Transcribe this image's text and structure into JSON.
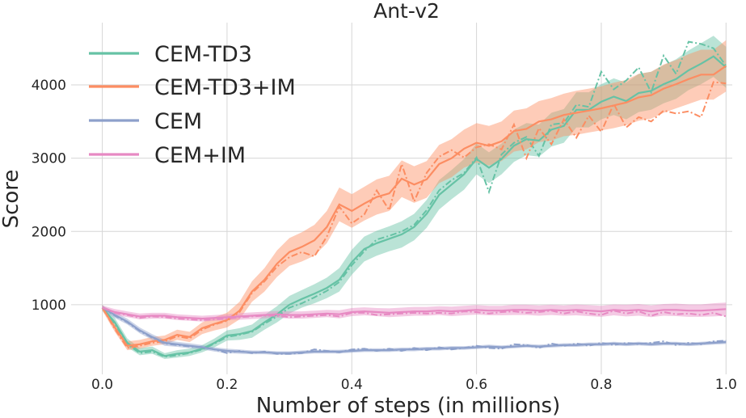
{
  "chart_data": {
    "type": "line",
    "title": "Ant-v2",
    "xlabel": "Number of steps (in millions)",
    "ylabel": "Score",
    "xlim": [
      -0.05,
      1.01
    ],
    "ylim": [
      50,
      4850
    ],
    "xticks": [
      0.0,
      0.2,
      0.4,
      0.6,
      0.8,
      1.0
    ],
    "xtick_labels": [
      "0.0",
      "0.2",
      "0.4",
      "0.6",
      "0.8",
      "1.0"
    ],
    "yticks": [
      1000,
      2000,
      3000,
      4000
    ],
    "ytick_labels": [
      "1000",
      "2000",
      "3000",
      "4000"
    ],
    "grid": true,
    "legend_position": "top-left",
    "series": [
      {
        "name": "CEM-TD3",
        "color": "#66c2a5",
        "x": [
          0.0,
          0.02,
          0.04,
          0.06,
          0.08,
          0.1,
          0.12,
          0.14,
          0.16,
          0.18,
          0.2,
          0.22,
          0.24,
          0.26,
          0.28,
          0.3,
          0.32,
          0.34,
          0.36,
          0.38,
          0.4,
          0.42,
          0.44,
          0.46,
          0.48,
          0.5,
          0.52,
          0.54,
          0.56,
          0.58,
          0.6,
          0.62,
          0.64,
          0.66,
          0.68,
          0.7,
          0.72,
          0.74,
          0.76,
          0.78,
          0.8,
          0.82,
          0.84,
          0.86,
          0.88,
          0.9,
          0.92,
          0.94,
          0.96,
          0.98,
          1.0
        ],
        "mean": [
          960,
          760,
          480,
          360,
          380,
          300,
          330,
          350,
          400,
          480,
          580,
          600,
          640,
          760,
          870,
          1000,
          1080,
          1150,
          1230,
          1340,
          1580,
          1760,
          1840,
          1900,
          1960,
          2060,
          2240,
          2500,
          2640,
          2780,
          2990,
          2870,
          2990,
          3170,
          3260,
          3240,
          3390,
          3440,
          3660,
          3660,
          3770,
          3840,
          3780,
          3890,
          3920,
          4010,
          4080,
          4200,
          4290,
          4390,
          4240
        ],
        "spread": [
          40,
          60,
          60,
          50,
          50,
          40,
          50,
          50,
          50,
          60,
          70,
          80,
          90,
          100,
          110,
          120,
          120,
          130,
          140,
          160,
          170,
          170,
          170,
          170,
          180,
          180,
          190,
          200,
          200,
          210,
          210,
          210,
          210,
          220,
          220,
          220,
          230,
          230,
          240,
          240,
          240,
          250,
          250,
          260,
          260,
          260,
          270,
          270,
          280,
          280,
          280
        ],
        "dash": [
          960,
          740,
          460,
          340,
          360,
          290,
          310,
          340,
          390,
          470,
          560,
          590,
          630,
          740,
          840,
          960,
          1020,
          1100,
          1190,
          1310,
          1540,
          1730,
          1890,
          1940,
          2000,
          2090,
          2290,
          2560,
          2700,
          2800,
          3010,
          2540,
          3050,
          3210,
          3290,
          3030,
          3460,
          3480,
          3730,
          3700,
          4180,
          3940,
          4060,
          4240,
          3900,
          4400,
          4150,
          4590,
          4560,
          4500,
          4260
        ]
      },
      {
        "name": "CEM-TD3+IM",
        "color": "#fc8d62",
        "x": [
          0.0,
          0.02,
          0.04,
          0.06,
          0.08,
          0.1,
          0.12,
          0.14,
          0.16,
          0.18,
          0.2,
          0.22,
          0.24,
          0.26,
          0.28,
          0.3,
          0.32,
          0.34,
          0.36,
          0.38,
          0.4,
          0.42,
          0.44,
          0.46,
          0.48,
          0.5,
          0.52,
          0.54,
          0.56,
          0.58,
          0.6,
          0.62,
          0.64,
          0.66,
          0.68,
          0.7,
          0.72,
          0.74,
          0.76,
          0.78,
          0.8,
          0.82,
          0.84,
          0.86,
          0.88,
          0.9,
          0.92,
          0.94,
          0.96,
          0.98,
          1.0
        ],
        "mean": [
          960,
          690,
          440,
          460,
          500,
          520,
          590,
          560,
          680,
          740,
          790,
          920,
          1180,
          1340,
          1560,
          1720,
          1790,
          1880,
          2060,
          2370,
          2280,
          2380,
          2470,
          2520,
          2720,
          2640,
          2710,
          2920,
          3000,
          3130,
          3210,
          3170,
          3230,
          3370,
          3400,
          3500,
          3530,
          3590,
          3620,
          3650,
          3680,
          3720,
          3760,
          3830,
          3860,
          3950,
          4010,
          4080,
          4140,
          4140,
          4260
        ],
        "spread": [
          40,
          60,
          60,
          60,
          60,
          60,
          70,
          70,
          80,
          90,
          100,
          120,
          140,
          160,
          180,
          190,
          200,
          210,
          220,
          230,
          230,
          230,
          240,
          240,
          250,
          250,
          250,
          260,
          260,
          260,
          270,
          270,
          270,
          280,
          280,
          280,
          290,
          290,
          300,
          300,
          300,
          310,
          310,
          320,
          320,
          330,
          330,
          340,
          340,
          340,
          350
        ],
        "dash": [
          960,
          670,
          410,
          440,
          480,
          500,
          570,
          540,
          660,
          730,
          780,
          900,
          1160,
          1320,
          1520,
          1650,
          1720,
          1660,
          1930,
          2340,
          2110,
          2230,
          2560,
          2290,
          2920,
          2410,
          2800,
          3020,
          3110,
          3010,
          3150,
          3190,
          3120,
          3460,
          3000,
          3410,
          3190,
          3530,
          3280,
          3580,
          3360,
          3740,
          3420,
          3560,
          3500,
          3650,
          3610,
          3640,
          3560,
          4040,
          4020
        ]
      },
      {
        "name": "CEM",
        "color": "#8da0cb",
        "x": [
          0.0,
          0.02,
          0.04,
          0.06,
          0.08,
          0.1,
          0.12,
          0.14,
          0.16,
          0.18,
          0.2,
          0.22,
          0.24,
          0.26,
          0.28,
          0.3,
          0.32,
          0.34,
          0.36,
          0.38,
          0.4,
          0.42,
          0.44,
          0.46,
          0.48,
          0.5,
          0.52,
          0.54,
          0.56,
          0.58,
          0.6,
          0.62,
          0.64,
          0.66,
          0.68,
          0.7,
          0.72,
          0.74,
          0.76,
          0.78,
          0.8,
          0.82,
          0.84,
          0.86,
          0.88,
          0.9,
          0.92,
          0.94,
          0.96,
          0.98,
          1.0
        ],
        "mean": [
          960,
          860,
          770,
          650,
          560,
          480,
          460,
          440,
          420,
          390,
          370,
          360,
          350,
          350,
          340,
          340,
          350,
          360,
          360,
          360,
          370,
          380,
          380,
          380,
          390,
          390,
          400,
          400,
          410,
          410,
          420,
          430,
          420,
          430,
          440,
          430,
          440,
          450,
          450,
          460,
          460,
          470,
          460,
          470,
          460,
          470,
          470,
          460,
          470,
          480,
          490
        ],
        "spread": [
          30,
          40,
          40,
          40,
          40,
          40,
          35,
          35,
          30,
          30,
          30,
          30,
          25,
          25,
          25,
          25,
          25,
          25,
          25,
          25,
          25,
          25,
          25,
          25,
          25,
          25,
          25,
          25,
          25,
          25,
          25,
          25,
          25,
          25,
          25,
          25,
          25,
          25,
          25,
          25,
          25,
          25,
          25,
          25,
          25,
          25,
          25,
          25,
          25,
          25,
          25
        ],
        "dash": [
          960,
          850,
          760,
          640,
          550,
          470,
          450,
          430,
          420,
          390,
          340,
          370,
          340,
          360,
          330,
          330,
          340,
          390,
          370,
          350,
          390,
          400,
          370,
          400,
          370,
          410,
          380,
          420,
          390,
          410,
          440,
          410,
          400,
          460,
          450,
          410,
          470,
          440,
          470,
          440,
          480,
          450,
          480,
          460,
          480,
          500,
          450,
          480,
          460,
          500,
          510
        ]
      },
      {
        "name": "CEM+IM",
        "color": "#e78ac3",
        "x": [
          0.0,
          0.02,
          0.04,
          0.06,
          0.08,
          0.1,
          0.12,
          0.14,
          0.16,
          0.18,
          0.2,
          0.22,
          0.24,
          0.26,
          0.28,
          0.3,
          0.32,
          0.34,
          0.36,
          0.38,
          0.4,
          0.42,
          0.44,
          0.46,
          0.48,
          0.5,
          0.52,
          0.54,
          0.56,
          0.58,
          0.6,
          0.62,
          0.64,
          0.66,
          0.68,
          0.7,
          0.72,
          0.74,
          0.76,
          0.78,
          0.8,
          0.82,
          0.84,
          0.86,
          0.88,
          0.9,
          0.92,
          0.94,
          0.96,
          0.98,
          1.0
        ],
        "mean": [
          960,
          900,
          870,
          840,
          850,
          850,
          830,
          820,
          810,
          820,
          830,
          840,
          850,
          860,
          870,
          860,
          860,
          870,
          880,
          870,
          900,
          910,
          900,
          890,
          900,
          910,
          910,
          920,
          910,
          920,
          930,
          920,
          920,
          930,
          930,
          920,
          930,
          920,
          930,
          920,
          910,
          930,
          920,
          930,
          910,
          930,
          930,
          920,
          920,
          930,
          940
        ],
        "spread": [
          30,
          40,
          40,
          40,
          40,
          40,
          40,
          40,
          40,
          40,
          40,
          45,
          45,
          45,
          45,
          50,
          50,
          50,
          50,
          55,
          55,
          55,
          55,
          60,
          60,
          60,
          60,
          60,
          65,
          65,
          65,
          65,
          65,
          70,
          70,
          70,
          70,
          70,
          75,
          75,
          75,
          75,
          80,
          80,
          80,
          80,
          85,
          85,
          85,
          90,
          90
        ],
        "dash": [
          960,
          890,
          860,
          820,
          840,
          830,
          810,
          800,
          790,
          800,
          810,
          830,
          840,
          850,
          850,
          830,
          840,
          850,
          860,
          840,
          890,
          890,
          860,
          870,
          880,
          890,
          880,
          890,
          880,
          910,
          900,
          880,
          900,
          910,
          890,
          900,
          920,
          880,
          910,
          880,
          860,
          920,
          880,
          910,
          850,
          900,
          870,
          880,
          860,
          890,
          840
        ]
      }
    ]
  }
}
